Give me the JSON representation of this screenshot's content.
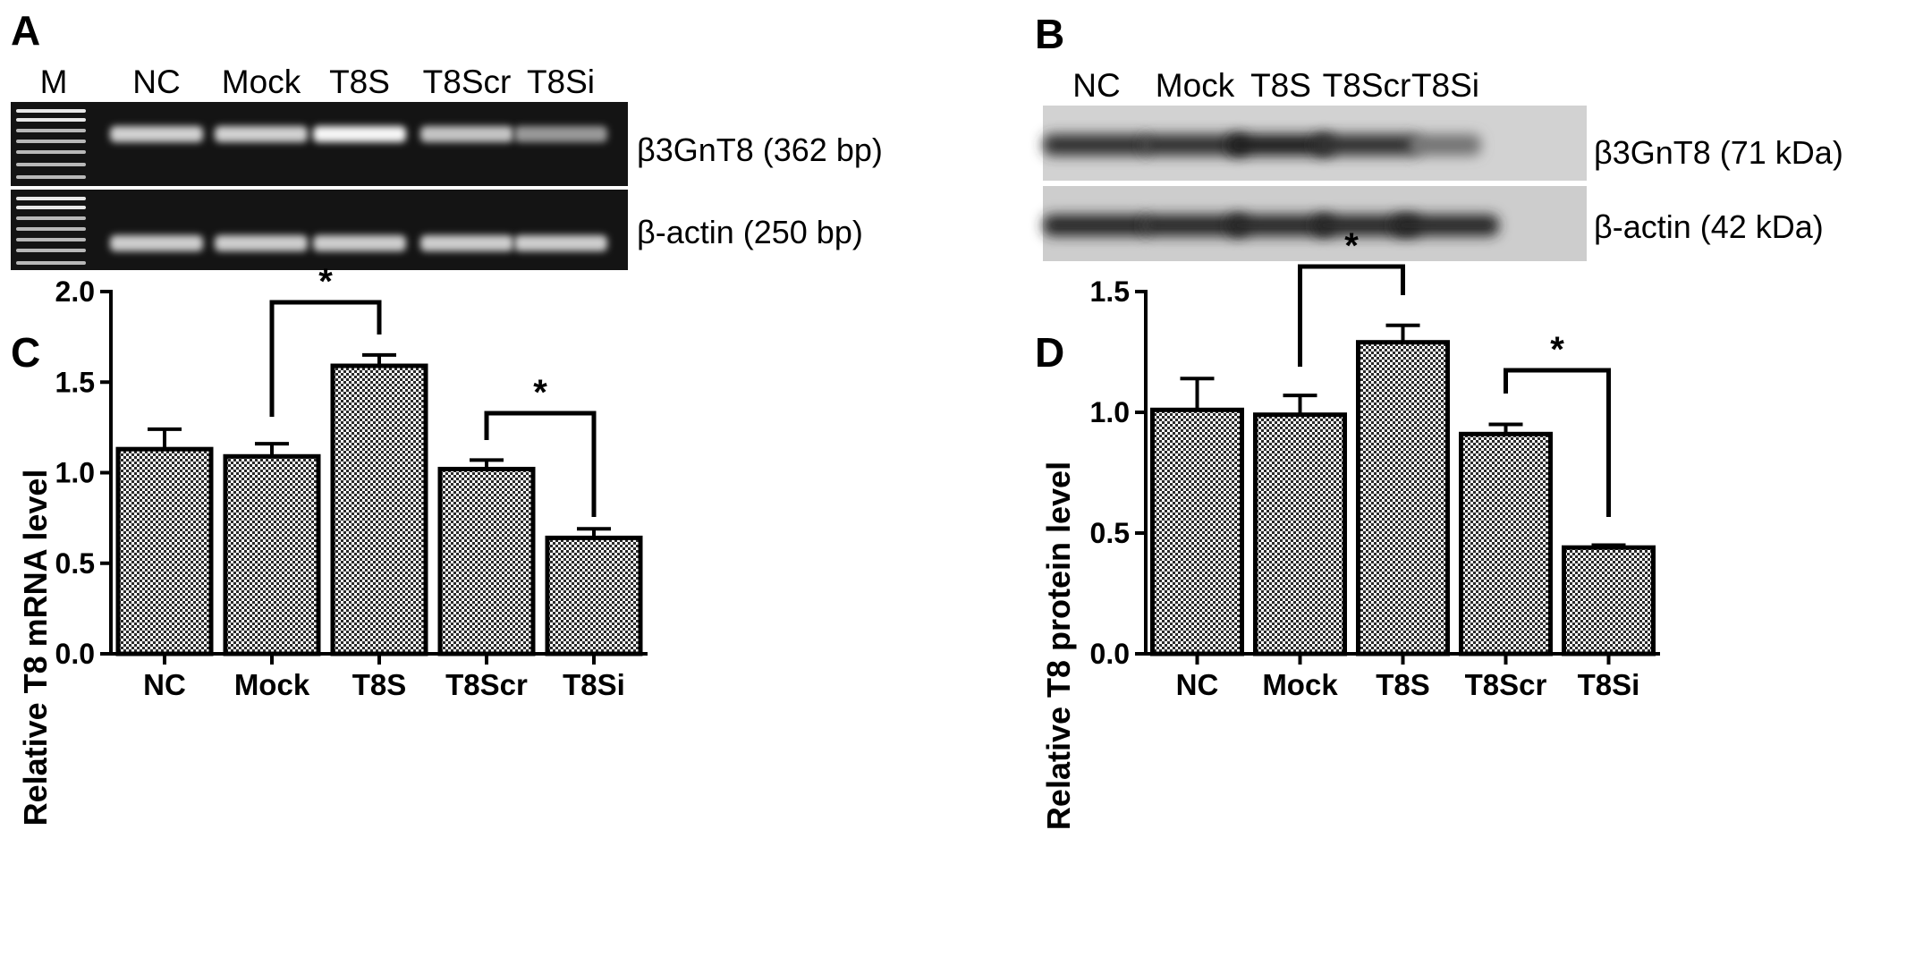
{
  "panels": {
    "A": {
      "letter": "A",
      "marker_label": "M",
      "lanes": [
        "NC",
        "Mock",
        "T8S",
        "T8Scr",
        "T8Si"
      ],
      "bands": [
        {
          "label": "β3GnT8 (362 bp)",
          "intensity": [
            0.72,
            0.72,
            0.95,
            0.65,
            0.38
          ]
        },
        {
          "label": "β-actin (250 bp)",
          "intensity": [
            0.7,
            0.7,
            0.7,
            0.7,
            0.7
          ]
        }
      ]
    },
    "B": {
      "letter": "B",
      "lanes": [
        "NC",
        "Mock",
        "T8S",
        "T8Scr",
        "T8Si"
      ],
      "bands": [
        {
          "label": "β3GnT8 (71 kDa)",
          "intensity": [
            0.8,
            0.8,
            0.9,
            0.8,
            0.45
          ]
        },
        {
          "label": "β-actin (42 kDa)",
          "intensity": [
            0.85,
            0.85,
            0.85,
            0.85,
            0.85
          ]
        }
      ]
    },
    "C": {
      "letter": "C"
    },
    "D": {
      "letter": "D"
    }
  },
  "colors": {
    "bar_fill": "#8a8a8a",
    "bar_stroke": "#000000",
    "gel_bg": "#141414",
    "blot_bg": "#cfcfcf"
  },
  "chart_data": [
    {
      "type": "bar",
      "panel": "C",
      "categories": [
        "NC",
        "Mock",
        "T8S",
        "T8Scr",
        "T8Si"
      ],
      "values": [
        1.13,
        1.09,
        1.59,
        1.02,
        0.64
      ],
      "errors": [
        0.11,
        0.07,
        0.06,
        0.05,
        0.05
      ],
      "ylabel": "Relative T8 mRNA level",
      "xlabel": "",
      "ylim": [
        0,
        2.0
      ],
      "yticks": [
        0.0,
        0.5,
        1.0,
        1.5,
        2.0
      ],
      "ytick_labels": [
        "0.0",
        "0.5",
        "1.0",
        "1.5",
        "2.0"
      ],
      "significance": [
        {
          "from": "Mock",
          "to": "T8S",
          "label": "*"
        },
        {
          "from": "T8Scr",
          "to": "T8Si",
          "label": "*"
        }
      ]
    },
    {
      "type": "bar",
      "panel": "D",
      "categories": [
        "NC",
        "Mock",
        "T8S",
        "T8Scr",
        "T8Si"
      ],
      "values": [
        1.01,
        0.99,
        1.29,
        0.91,
        0.44
      ],
      "errors": [
        0.13,
        0.08,
        0.07,
        0.04,
        0.01
      ],
      "ylabel": "Relative T8 protein level",
      "xlabel": "",
      "ylim": [
        0,
        1.5
      ],
      "yticks": [
        0.0,
        0.5,
        1.0,
        1.5
      ],
      "ytick_labels": [
        "0.0",
        "0.5",
        "1.0",
        "1.5"
      ],
      "significance": [
        {
          "from": "Mock",
          "to": "T8S",
          "label": "*"
        },
        {
          "from": "T8Scr",
          "to": "T8Si",
          "label": "*"
        }
      ]
    }
  ]
}
